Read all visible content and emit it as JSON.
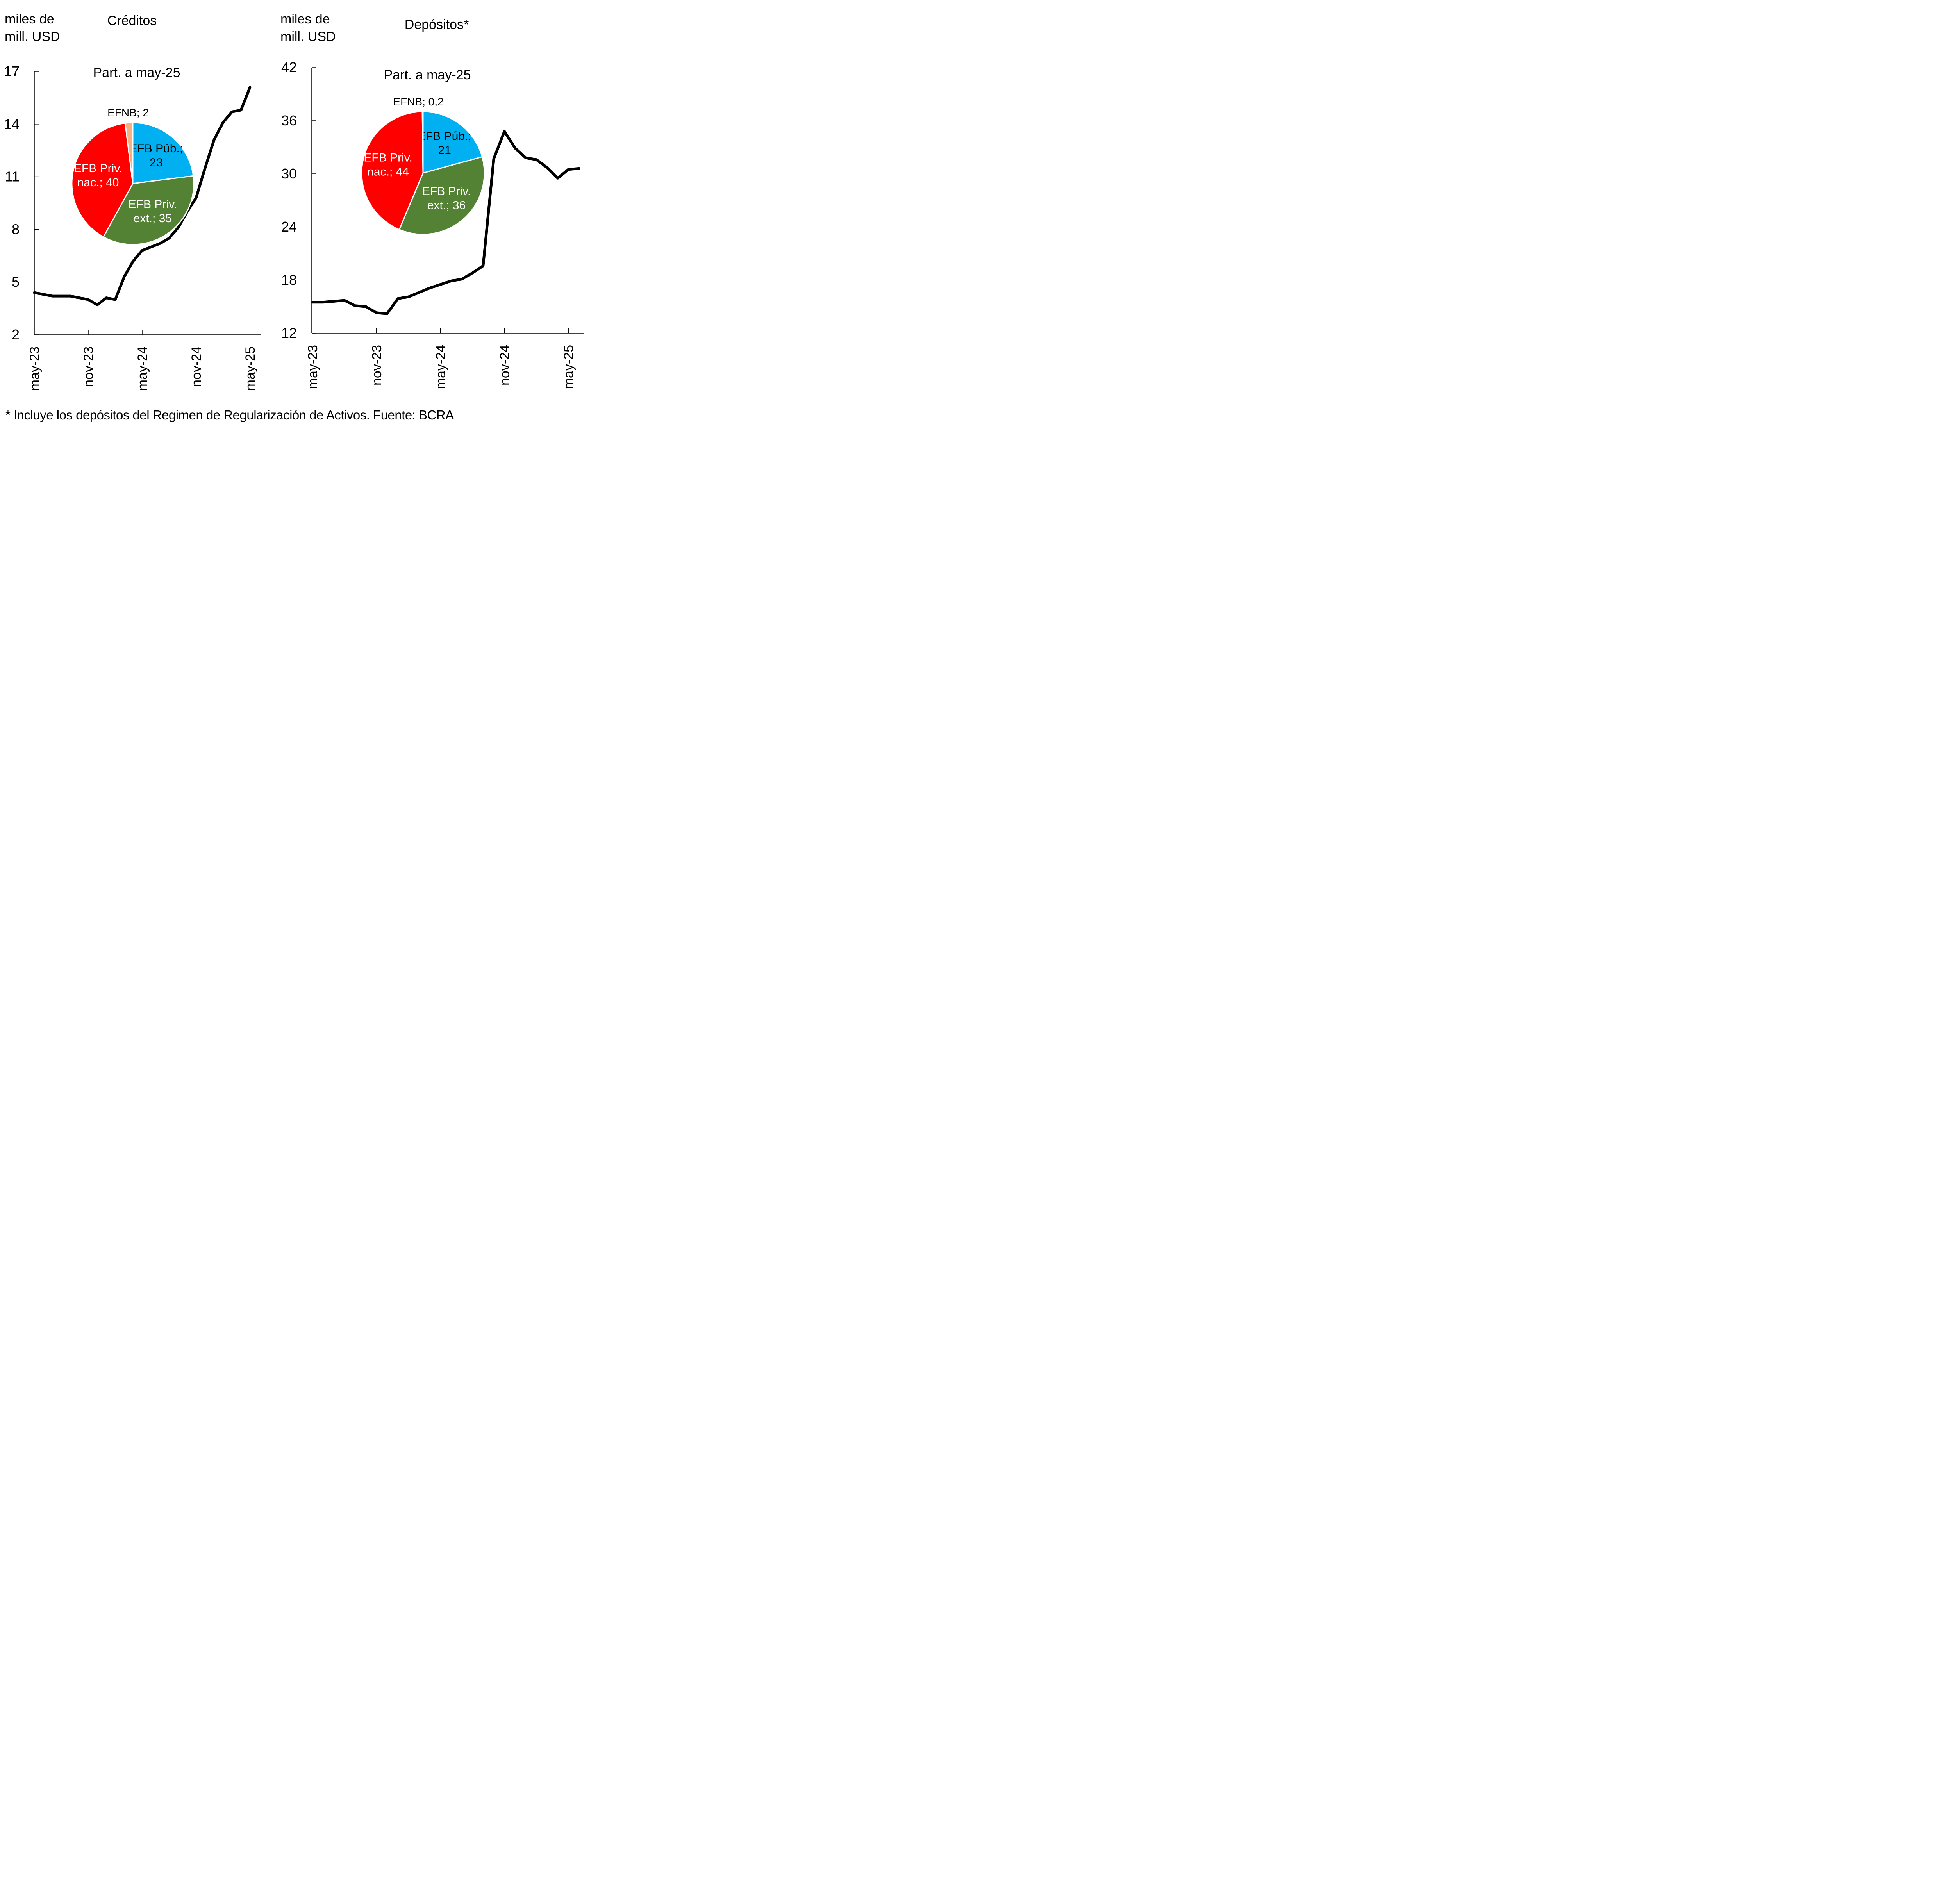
{
  "chart_data": [
    {
      "type": "line",
      "title": "Créditos",
      "ylabel": "miles de mill. USD",
      "ylabel_lines": [
        "miles de",
        "mill. USD"
      ],
      "ylim": [
        2,
        17
      ],
      "yticks": [
        2,
        5,
        8,
        11,
        14,
        17
      ],
      "xticks": [
        "may-23",
        "nov-23",
        "may-24",
        "nov-24",
        "may-25"
      ],
      "x": [
        "may-23",
        "jun-23",
        "jul-23",
        "ago-23",
        "sep-23",
        "oct-23",
        "nov-23",
        "dic-23",
        "ene-24",
        "feb-24",
        "mar-24",
        "abr-24",
        "may-24",
        "jun-24",
        "jul-24",
        "ago-24",
        "sep-24",
        "oct-24",
        "nov-24",
        "dic-24",
        "ene-25",
        "feb-25",
        "mar-25",
        "abr-25",
        "may-25",
        "jun-25"
      ],
      "series": [
        {
          "name": "Créditos",
          "values": [
            4.4,
            4.3,
            4.2,
            4.2,
            4.2,
            4.1,
            4.0,
            3.7,
            4.1,
            4.0,
            5.3,
            6.2,
            6.8,
            7.0,
            7.2,
            7.5,
            8.1,
            9.0,
            9.8,
            11.5,
            13.1,
            14.1,
            14.7,
            14.8,
            16.1
          ]
        }
      ],
      "grid": false,
      "inset_pie": {
        "type": "pie",
        "title": "Part. a may-25",
        "slices": [
          {
            "name": "EFB Púb.",
            "value": 23,
            "label": [
              "EFB Púb.;",
              "23"
            ],
            "color": "#00B0F0",
            "text_color": "#000000"
          },
          {
            "name": "EFB Priv. ext.",
            "value": 35,
            "label": [
              "EFB Priv.",
              "ext.; 35"
            ],
            "color": "#548235",
            "text_color": "#FFFFFF"
          },
          {
            "name": "EFB Priv. nac.",
            "value": 40,
            "label": [
              "EFB Priv.",
              "nac.; 40"
            ],
            "color": "#FF0000",
            "text_color": "#FFFFFF"
          },
          {
            "name": "EFNB",
            "value": 2,
            "label": [
              "EFNB; 2"
            ],
            "color": "#F4B183",
            "text_color": "#000000"
          }
        ]
      }
    },
    {
      "type": "line",
      "title": "Depósitos*",
      "ylabel": "miles de mill. USD",
      "ylabel_lines": [
        "miles de",
        "mill. USD"
      ],
      "ylim": [
        12,
        42
      ],
      "yticks": [
        12,
        18,
        24,
        30,
        36,
        42
      ],
      "xticks": [
        "may-23",
        "nov-23",
        "may-24",
        "nov-24",
        "may-25"
      ],
      "series": [
        {
          "name": "Depósitos",
          "values": [
            15.5,
            15.5,
            15.6,
            15.7,
            15.1,
            15.0,
            14.3,
            14.2,
            15.9,
            16.1,
            16.6,
            17.1,
            17.5,
            17.9,
            18.1,
            18.8,
            19.6,
            31.7,
            34.8,
            32.9,
            31.8,
            31.6,
            30.7,
            29.5,
            30.5,
            30.6
          ]
        }
      ],
      "grid": false,
      "inset_pie": {
        "type": "pie",
        "title": "Part. a may-25",
        "slices": [
          {
            "name": "EFB Púb.",
            "value": 21,
            "label": [
              "EFB Púb.;",
              "21"
            ],
            "color": "#00B0F0",
            "text_color": "#000000"
          },
          {
            "name": "EFB Priv. ext.",
            "value": 36,
            "label": [
              "EFB Priv.",
              "ext.; 36"
            ],
            "color": "#548235",
            "text_color": "#FFFFFF"
          },
          {
            "name": "EFB Priv. nac.",
            "value": 44,
            "label": [
              "EFB Priv.",
              "nac.; 44"
            ],
            "color": "#FF0000",
            "text_color": "#FFFFFF"
          },
          {
            "name": "EFNB",
            "value": 0.2,
            "label": [
              "EFNB; 0,2"
            ],
            "color": "#F4B183",
            "text_color": "#000000"
          }
        ]
      }
    }
  ],
  "footnote": "* Incluye los depósitos del Regimen de Regularización de Activos. Fuente: BCRA"
}
